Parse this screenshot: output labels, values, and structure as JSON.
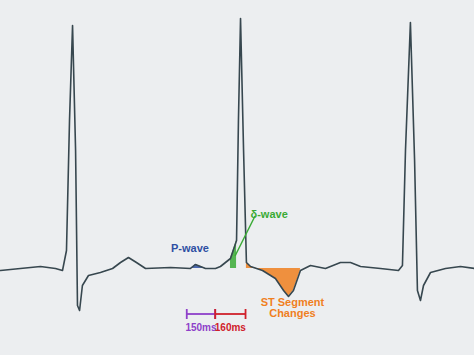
{
  "chart_data": {
    "type": "line",
    "x": [
      0,
      105,
      211,
      290,
      327,
      348,
      364,
      380,
      396,
      406,
      417,
      432,
      464,
      527,
      591,
      633,
      675,
      717,
      765,
      897,
      1002,
      1028,
      1055,
      1081,
      1134,
      1160,
      1213,
      1245,
      1255,
      1266,
      1282,
      1297,
      1319,
      1382,
      1450,
      1493,
      1519,
      1545,
      1582,
      1635,
      1714,
      1793,
      1846,
      1899,
      2004,
      2099,
      2120,
      2136,
      2162,
      2184,
      2199,
      2215,
      2231,
      2268,
      2347,
      2426,
      2500
    ],
    "values": [
      -0.02,
      0,
      0.02,
      0,
      -0.02,
      0.18,
      1.48,
      2.43,
      1.18,
      -0.37,
      -0.42,
      -0.17,
      -0.07,
      -0.04,
      0,
      0.06,
      0.11,
      0.06,
      0,
      0.01,
      0,
      0.04,
      0.02,
      0,
      0,
      0.02,
      0.1,
      0.28,
      1.48,
      2.5,
      1.18,
      0.06,
      0.02,
      -0.02,
      -0.1,
      -0.22,
      -0.28,
      -0.22,
      -0.02,
      0.03,
      0,
      0.06,
      0.06,
      0.02,
      0,
      -0.02,
      0.03,
      1.18,
      2.46,
      1.08,
      -0.22,
      -0.32,
      -0.17,
      -0.04,
      0,
      0.02,
      0
    ],
    "color": "#37474f",
    "xlim": [
      0,
      2500
    ],
    "ylim": [
      -0.87,
      2.68
    ],
    "tick_labels": false,
    "regions": [
      {
        "label": "P-wave",
        "color": "#2e4fa3",
        "start": 1002,
        "end": 1081
      },
      {
        "label": "δ-wave",
        "color": "#3aaa35",
        "start": 1213,
        "end": 1245
      },
      {
        "label": "ST Segment Changes",
        "color": "#f07f1e",
        "start": 1297,
        "end": 1582
      }
    ],
    "intervals": [
      {
        "value": 150,
        "label": "150ms",
        "start": 985,
        "color": "#8e3fc9"
      },
      {
        "value": 160,
        "label": "160ms",
        "start": 1135,
        "color": "#d0202a"
      }
    ]
  }
}
